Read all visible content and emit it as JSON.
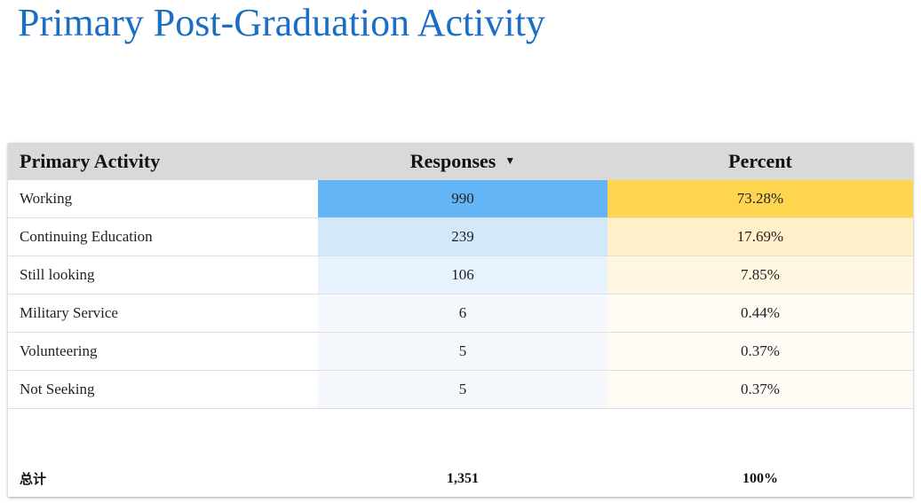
{
  "title": "Primary Post-Graduation Activity",
  "table": {
    "headers": {
      "activity": "Primary Activity",
      "responses": "Responses",
      "percent": "Percent",
      "sort_indicator": "▼"
    },
    "rows": [
      {
        "label": "Working",
        "responses": "990",
        "percent": "73.28%",
        "resp_color": "#64b5f6",
        "pct_color": "#ffd54f"
      },
      {
        "label": "Continuing Education",
        "responses": "239",
        "percent": "17.69%",
        "resp_color": "#d4e8fc",
        "pct_color": "#fff0c9"
      },
      {
        "label": "Still looking",
        "responses": "106",
        "percent": "7.85%",
        "resp_color": "#e6f2fd",
        "pct_color": "#fff6e0"
      },
      {
        "label": "Military Service",
        "responses": "6",
        "percent": "0.44%",
        "resp_color": "#f5f9fe",
        "pct_color": "#fffcf5"
      },
      {
        "label": "Volunteering",
        "responses": "5",
        "percent": "0.37%",
        "resp_color": "#f5f9fe",
        "pct_color": "#fffcf5"
      },
      {
        "label": "Not Seeking",
        "responses": "5",
        "percent": "0.37%",
        "resp_color": "#f5f9fe",
        "pct_color": "#fffcf5"
      }
    ],
    "total": {
      "label": "总计",
      "responses": "1,351",
      "percent": "100%"
    }
  },
  "colors": {
    "title": "#1a6fc4",
    "header_bg": "#d9d9d9"
  }
}
